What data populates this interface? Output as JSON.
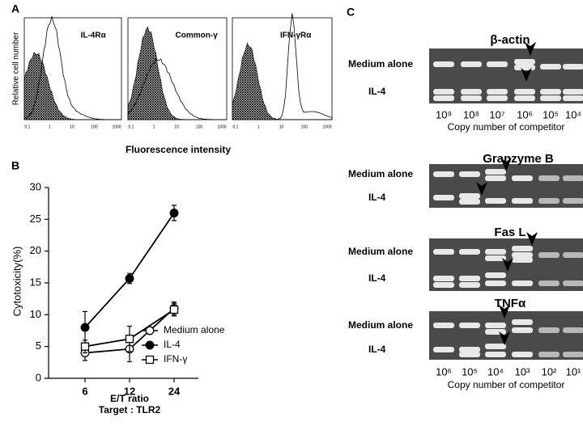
{
  "panel_a": {
    "label": "A",
    "y_label": "Relative cell number",
    "x_label": "Fluorescence intensity",
    "xticks": [
      "0.1",
      "1",
      "10",
      "100",
      "1000"
    ],
    "histograms": [
      {
        "title": "IL-4Rα"
      },
      {
        "title": "Common-γ"
      },
      {
        "title": "IFN-γRα"
      }
    ]
  },
  "chart_data": {
    "type": "line",
    "panel_label": "B",
    "categories": [
      "6",
      "12",
      "24"
    ],
    "x_label": "E/T ratio",
    "x_sublabel": "Target : TLR2",
    "y_label": "Cytotoxicity(%)",
    "ylim": [
      0,
      30
    ],
    "yticks": [
      0,
      5,
      10,
      15,
      20,
      25,
      30
    ],
    "legend": "lower right",
    "series": [
      {
        "name": "Medium alone",
        "color": "#000000",
        "marker": "open-circle",
        "values": [
          4,
          4.6,
          11
        ],
        "errors": [
          1.2,
          2,
          1
        ]
      },
      {
        "name": "IL-4",
        "color": "#000000",
        "marker": "filled-circle",
        "values": [
          8,
          15.7,
          26
        ],
        "errors": [
          2.5,
          0.8,
          1.2
        ]
      },
      {
        "name": "IFN-γ",
        "color": "#000000",
        "marker": "open-square",
        "values": [
          5,
          6.2,
          10.8
        ],
        "errors": [
          1,
          2,
          1
        ]
      }
    ]
  },
  "panel_c": {
    "label": "C",
    "row_labels": [
      "Medium alone",
      "IL-4"
    ],
    "caption": "Copy number of competitor",
    "top_competitors": [
      "10⁹",
      "10⁸",
      "10⁷",
      "10⁶",
      "10⁵",
      "10⁴"
    ],
    "bottom_competitors": [
      "10⁶",
      "10⁵",
      "10⁴",
      "10³",
      "10²",
      "10¹"
    ],
    "gels": [
      {
        "title": "β-actin"
      },
      {
        "title": "Granzyme B"
      },
      {
        "title": "Fas L"
      },
      {
        "title": "TNFα"
      }
    ]
  }
}
